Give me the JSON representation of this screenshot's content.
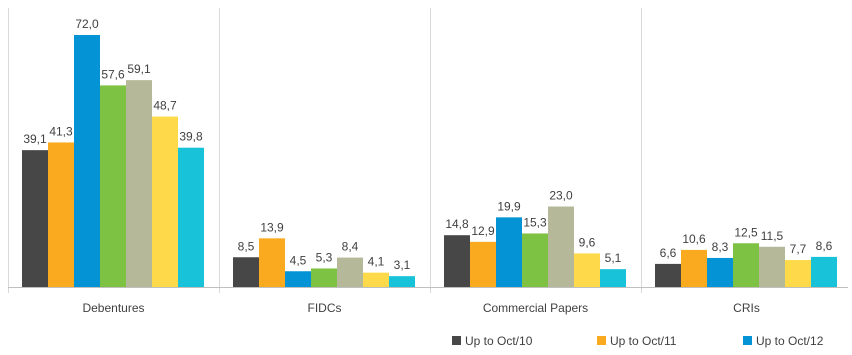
{
  "chart_data": {
    "type": "bar",
    "categories": [
      "Debentures",
      "FIDCs",
      "Commercial Papers",
      "CRIs"
    ],
    "series": [
      {
        "name": "Up to Oct/10",
        "color": "#474747",
        "values": [
          39.1,
          8.5,
          14.8,
          6.6
        ],
        "labels": [
          "39,1",
          "8,5",
          "14,8",
          "6,6"
        ]
      },
      {
        "name": "Up to Oct/11",
        "color": "#FAAA1E",
        "values": [
          41.3,
          13.9,
          12.9,
          10.6
        ],
        "labels": [
          "41,3",
          "13,9",
          "12,9",
          "10,6"
        ]
      },
      {
        "name": "Up to Oct/12",
        "color": "#0494D6",
        "values": [
          72.0,
          4.5,
          19.9,
          8.3
        ],
        "labels": [
          "72,0",
          "4,5",
          "19,9",
          "8,3"
        ]
      },
      {
        "name": "",
        "color": "#7DC242",
        "values": [
          57.6,
          5.3,
          15.3,
          12.5
        ],
        "labels": [
          "57,6",
          "5,3",
          "15,3",
          "12,5"
        ]
      },
      {
        "name": "",
        "color": "#B5B899",
        "values": [
          59.1,
          8.4,
          23.0,
          11.5
        ],
        "labels": [
          "59,1",
          "8,4",
          "23,0",
          "11,5"
        ]
      },
      {
        "name": "",
        "color": "#FEDA4A",
        "values": [
          48.7,
          4.1,
          9.6,
          7.7
        ],
        "labels": [
          "48,7",
          "4,1",
          "9,6",
          "7,7"
        ]
      },
      {
        "name": "",
        "color": "#18C2D9",
        "values": [
          39.8,
          3.1,
          5.1,
          8.6
        ],
        "labels": [
          "39,8",
          "3,1",
          "5,1",
          "8,6"
        ]
      }
    ],
    "ylim": [
      0,
      72
    ],
    "grid": false,
    "legend": "bottom-right",
    "title": "",
    "xlabel": "",
    "ylabel": ""
  }
}
